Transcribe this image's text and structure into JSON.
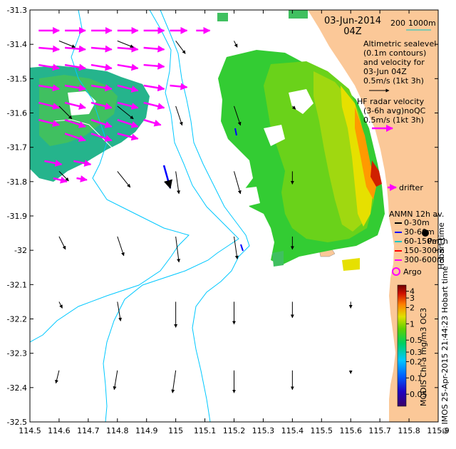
{
  "title": {
    "date": "03-Jun-2014",
    "time": "04Z"
  },
  "scale_bar": {
    "labels": [
      "200",
      "1000m"
    ],
    "line_color": "#00c8c8"
  },
  "legend": {
    "altimetric": [
      "Altimetric sealevel",
      "(0.1m contours)",
      "and velocity for",
      "03-Jun 04Z",
      "0.5m/s (1kt 3h)"
    ],
    "hf_radar": [
      "HF radar velocity",
      "(3-6h avg)noQC",
      "0.5m/s (1kt 3h)"
    ],
    "drifter": "drifter",
    "anmn": {
      "title": "ANMN 12h av.",
      "items": [
        {
          "label": "0-30m",
          "color": "#000000"
        },
        {
          "label": "30-60m",
          "color": "#0000ff"
        },
        {
          "label": "60-150m",
          "color": "#00c8c8"
        },
        {
          "label": "150-300m",
          "color": "#ff0000"
        },
        {
          "label": "300-600m",
          "color": "#ff00ff"
        }
      ]
    },
    "perth": "Perth",
    "argo": "Argo",
    "hobart_vertical": "Hobart time"
  },
  "colorbar": {
    "label": "MODIS Chl-a mg/m3 OC3",
    "ticks": [
      "4",
      "3",
      "2",
      "1",
      "0.5",
      "0.3",
      "0.2",
      "0.1",
      "0.05"
    ],
    "tick_values": [
      4,
      3,
      2,
      1,
      0.5,
      0.3,
      0.2,
      0.1,
      0.05
    ],
    "range": [
      0.03,
      5.2
    ],
    "scale": "log"
  },
  "credit": "© IMOS 25-Apr-2015 21:44:23 Hobart time",
  "axes": {
    "x_ticks": [
      "114.5",
      "114.6",
      "114.7",
      "114.8",
      "114.9",
      "115",
      "115.1",
      "115.2",
      "115.3",
      "115.4",
      "115.5",
      "115.6",
      "115.7",
      "115.8",
      "115.9"
    ],
    "x_values": [
      114.5,
      114.6,
      114.7,
      114.8,
      114.9,
      115.0,
      115.1,
      115.2,
      115.3,
      115.4,
      115.5,
      115.6,
      115.7,
      115.8,
      115.9
    ],
    "y_ticks": [
      "-31.3",
      "-31.4",
      "-31.5",
      "-31.6",
      "-31.7",
      "-31.8",
      "-31.9",
      "-32",
      "-32.1",
      "-32.2",
      "-32.3",
      "-32.4",
      "-32.5"
    ],
    "y_values": [
      -31.3,
      -31.4,
      -31.5,
      -31.6,
      -31.7,
      -31.8,
      -31.9,
      -32.0,
      -32.1,
      -32.2,
      -32.3,
      -32.4,
      -32.5
    ],
    "xlim": [
      114.5,
      115.9
    ],
    "ylim": [
      -32.5,
      -31.3
    ]
  },
  "colors": {
    "land": "#fbc898",
    "isobath": "#00c8ff",
    "hf_arrow": "#ff00ff",
    "alt_arrow": "#000000"
  },
  "hf_radar_vectors": [
    {
      "lon": 114.53,
      "lat": -31.36,
      "u": 0.6,
      "v": 0.0
    },
    {
      "lon": 114.62,
      "lat": -31.36,
      "u": 0.6,
      "v": 0.0
    },
    {
      "lon": 114.71,
      "lat": -31.36,
      "u": 0.6,
      "v": 0.0
    },
    {
      "lon": 114.8,
      "lat": -31.36,
      "u": 0.6,
      "v": 0.0
    },
    {
      "lon": 114.89,
      "lat": -31.36,
      "u": 0.6,
      "v": 0.0
    },
    {
      "lon": 114.98,
      "lat": -31.36,
      "u": 0.5,
      "v": 0.0
    },
    {
      "lon": 115.07,
      "lat": -31.36,
      "u": 0.4,
      "v": 0.0
    },
    {
      "lon": 114.53,
      "lat": -31.41,
      "u": 0.6,
      "v": -0.05
    },
    {
      "lon": 114.62,
      "lat": -31.41,
      "u": 0.6,
      "v": -0.05
    },
    {
      "lon": 114.71,
      "lat": -31.41,
      "u": 0.6,
      "v": -0.05
    },
    {
      "lon": 114.8,
      "lat": -31.41,
      "u": 0.6,
      "v": -0.05
    },
    {
      "lon": 114.89,
      "lat": -31.41,
      "u": 0.6,
      "v": -0.05
    },
    {
      "lon": 114.53,
      "lat": -31.46,
      "u": 0.6,
      "v": -0.1
    },
    {
      "lon": 114.62,
      "lat": -31.46,
      "u": 0.6,
      "v": -0.1
    },
    {
      "lon": 114.71,
      "lat": -31.46,
      "u": 0.6,
      "v": -0.1
    },
    {
      "lon": 114.8,
      "lat": -31.46,
      "u": 0.6,
      "v": -0.1
    },
    {
      "lon": 114.89,
      "lat": -31.46,
      "u": 0.6,
      "v": -0.05
    },
    {
      "lon": 114.53,
      "lat": -31.52,
      "u": 0.6,
      "v": -0.1
    },
    {
      "lon": 114.62,
      "lat": -31.52,
      "u": 0.6,
      "v": -0.1
    },
    {
      "lon": 114.71,
      "lat": -31.52,
      "u": 0.6,
      "v": -0.1
    },
    {
      "lon": 114.8,
      "lat": -31.52,
      "u": 0.6,
      "v": -0.15
    },
    {
      "lon": 114.89,
      "lat": -31.52,
      "u": 0.6,
      "v": -0.1
    },
    {
      "lon": 114.98,
      "lat": -31.52,
      "u": 0.5,
      "v": -0.05
    },
    {
      "lon": 114.53,
      "lat": -31.57,
      "u": 0.6,
      "v": -0.15
    },
    {
      "lon": 114.62,
      "lat": -31.57,
      "u": 0.6,
      "v": -0.15
    },
    {
      "lon": 114.71,
      "lat": -31.57,
      "u": 0.6,
      "v": -0.15
    },
    {
      "lon": 114.8,
      "lat": -31.57,
      "u": 0.6,
      "v": -0.15
    },
    {
      "lon": 114.89,
      "lat": -31.57,
      "u": 0.6,
      "v": -0.15
    },
    {
      "lon": 114.53,
      "lat": -31.62,
      "u": 0.6,
      "v": -0.15
    },
    {
      "lon": 114.62,
      "lat": -31.62,
      "u": 0.6,
      "v": -0.2
    },
    {
      "lon": 114.71,
      "lat": -31.62,
      "u": 0.6,
      "v": -0.2
    },
    {
      "lon": 114.8,
      "lat": -31.62,
      "u": 0.6,
      "v": -0.2
    },
    {
      "lon": 114.89,
      "lat": -31.62,
      "u": 0.5,
      "v": -0.15
    },
    {
      "lon": 114.62,
      "lat": -31.66,
      "u": 0.6,
      "v": -0.2
    },
    {
      "lon": 114.71,
      "lat": -31.66,
      "u": 0.6,
      "v": -0.2
    },
    {
      "lon": 114.8,
      "lat": -31.66,
      "u": 0.6,
      "v": -0.15
    },
    {
      "lon": 114.55,
      "lat": -31.74,
      "u": 0.5,
      "v": -0.1
    },
    {
      "lon": 114.65,
      "lat": -31.74,
      "u": 0.5,
      "v": -0.1
    },
    {
      "lon": 114.58,
      "lat": -31.79,
      "u": 0.4,
      "v": -0.1
    },
    {
      "lon": 114.66,
      "lat": -31.79,
      "u": 0.3,
      "v": -0.05
    }
  ],
  "alt_vectors": [
    {
      "lon": 114.6,
      "lat": -31.39,
      "u": 0.25,
      "v": -0.1
    },
    {
      "lon": 114.8,
      "lat": -31.39,
      "u": 0.25,
      "v": -0.1
    },
    {
      "lon": 115.0,
      "lat": -31.39,
      "u": 0.15,
      "v": -0.2
    },
    {
      "lon": 115.2,
      "lat": -31.39,
      "u": 0.05,
      "v": -0.1
    },
    {
      "lon": 114.6,
      "lat": -31.58,
      "u": 0.2,
      "v": -0.2
    },
    {
      "lon": 114.8,
      "lat": -31.58,
      "u": 0.25,
      "v": -0.2
    },
    {
      "lon": 115.0,
      "lat": -31.58,
      "u": 0.1,
      "v": -0.3
    },
    {
      "lon": 115.2,
      "lat": -31.58,
      "u": 0.1,
      "v": -0.3
    },
    {
      "lon": 115.4,
      "lat": -31.58,
      "u": 0.05,
      "v": -0.05
    },
    {
      "lon": 114.6,
      "lat": -31.77,
      "u": 0.15,
      "v": -0.15
    },
    {
      "lon": 114.8,
      "lat": -31.77,
      "u": 0.2,
      "v": -0.25
    },
    {
      "lon": 115.0,
      "lat": -31.77,
      "u": 0.05,
      "v": -0.35
    },
    {
      "lon": 115.2,
      "lat": -31.77,
      "u": 0.1,
      "v": -0.35
    },
    {
      "lon": 115.4,
      "lat": -31.77,
      "u": 0.0,
      "v": -0.2
    },
    {
      "lon": 114.6,
      "lat": -31.96,
      "u": 0.1,
      "v": -0.2
    },
    {
      "lon": 114.8,
      "lat": -31.96,
      "u": 0.1,
      "v": -0.3
    },
    {
      "lon": 115.0,
      "lat": -31.96,
      "u": 0.05,
      "v": -0.4
    },
    {
      "lon": 115.2,
      "lat": -31.96,
      "u": 0.05,
      "v": -0.35
    },
    {
      "lon": 115.4,
      "lat": -31.96,
      "u": 0.0,
      "v": -0.2
    },
    {
      "lon": 114.6,
      "lat": -32.15,
      "u": 0.05,
      "v": -0.1
    },
    {
      "lon": 114.8,
      "lat": -32.15,
      "u": 0.05,
      "v": -0.3
    },
    {
      "lon": 115.0,
      "lat": -32.15,
      "u": 0.0,
      "v": -0.4
    },
    {
      "lon": 115.2,
      "lat": -32.15,
      "u": 0.0,
      "v": -0.35
    },
    {
      "lon": 115.4,
      "lat": -32.15,
      "u": 0.0,
      "v": -0.25
    },
    {
      "lon": 115.6,
      "lat": -32.15,
      "u": 0.0,
      "v": -0.1
    },
    {
      "lon": 114.6,
      "lat": -32.35,
      "u": -0.05,
      "v": -0.2
    },
    {
      "lon": 114.8,
      "lat": -32.35,
      "u": -0.05,
      "v": -0.3
    },
    {
      "lon": 115.0,
      "lat": -32.35,
      "u": -0.05,
      "v": -0.35
    },
    {
      "lon": 115.2,
      "lat": -32.35,
      "u": 0.0,
      "v": -0.35
    },
    {
      "lon": 115.4,
      "lat": -32.35,
      "u": 0.0,
      "v": -0.3
    },
    {
      "lon": 115.6,
      "lat": -32.35,
      "u": 0.0,
      "v": -0.05
    }
  ]
}
